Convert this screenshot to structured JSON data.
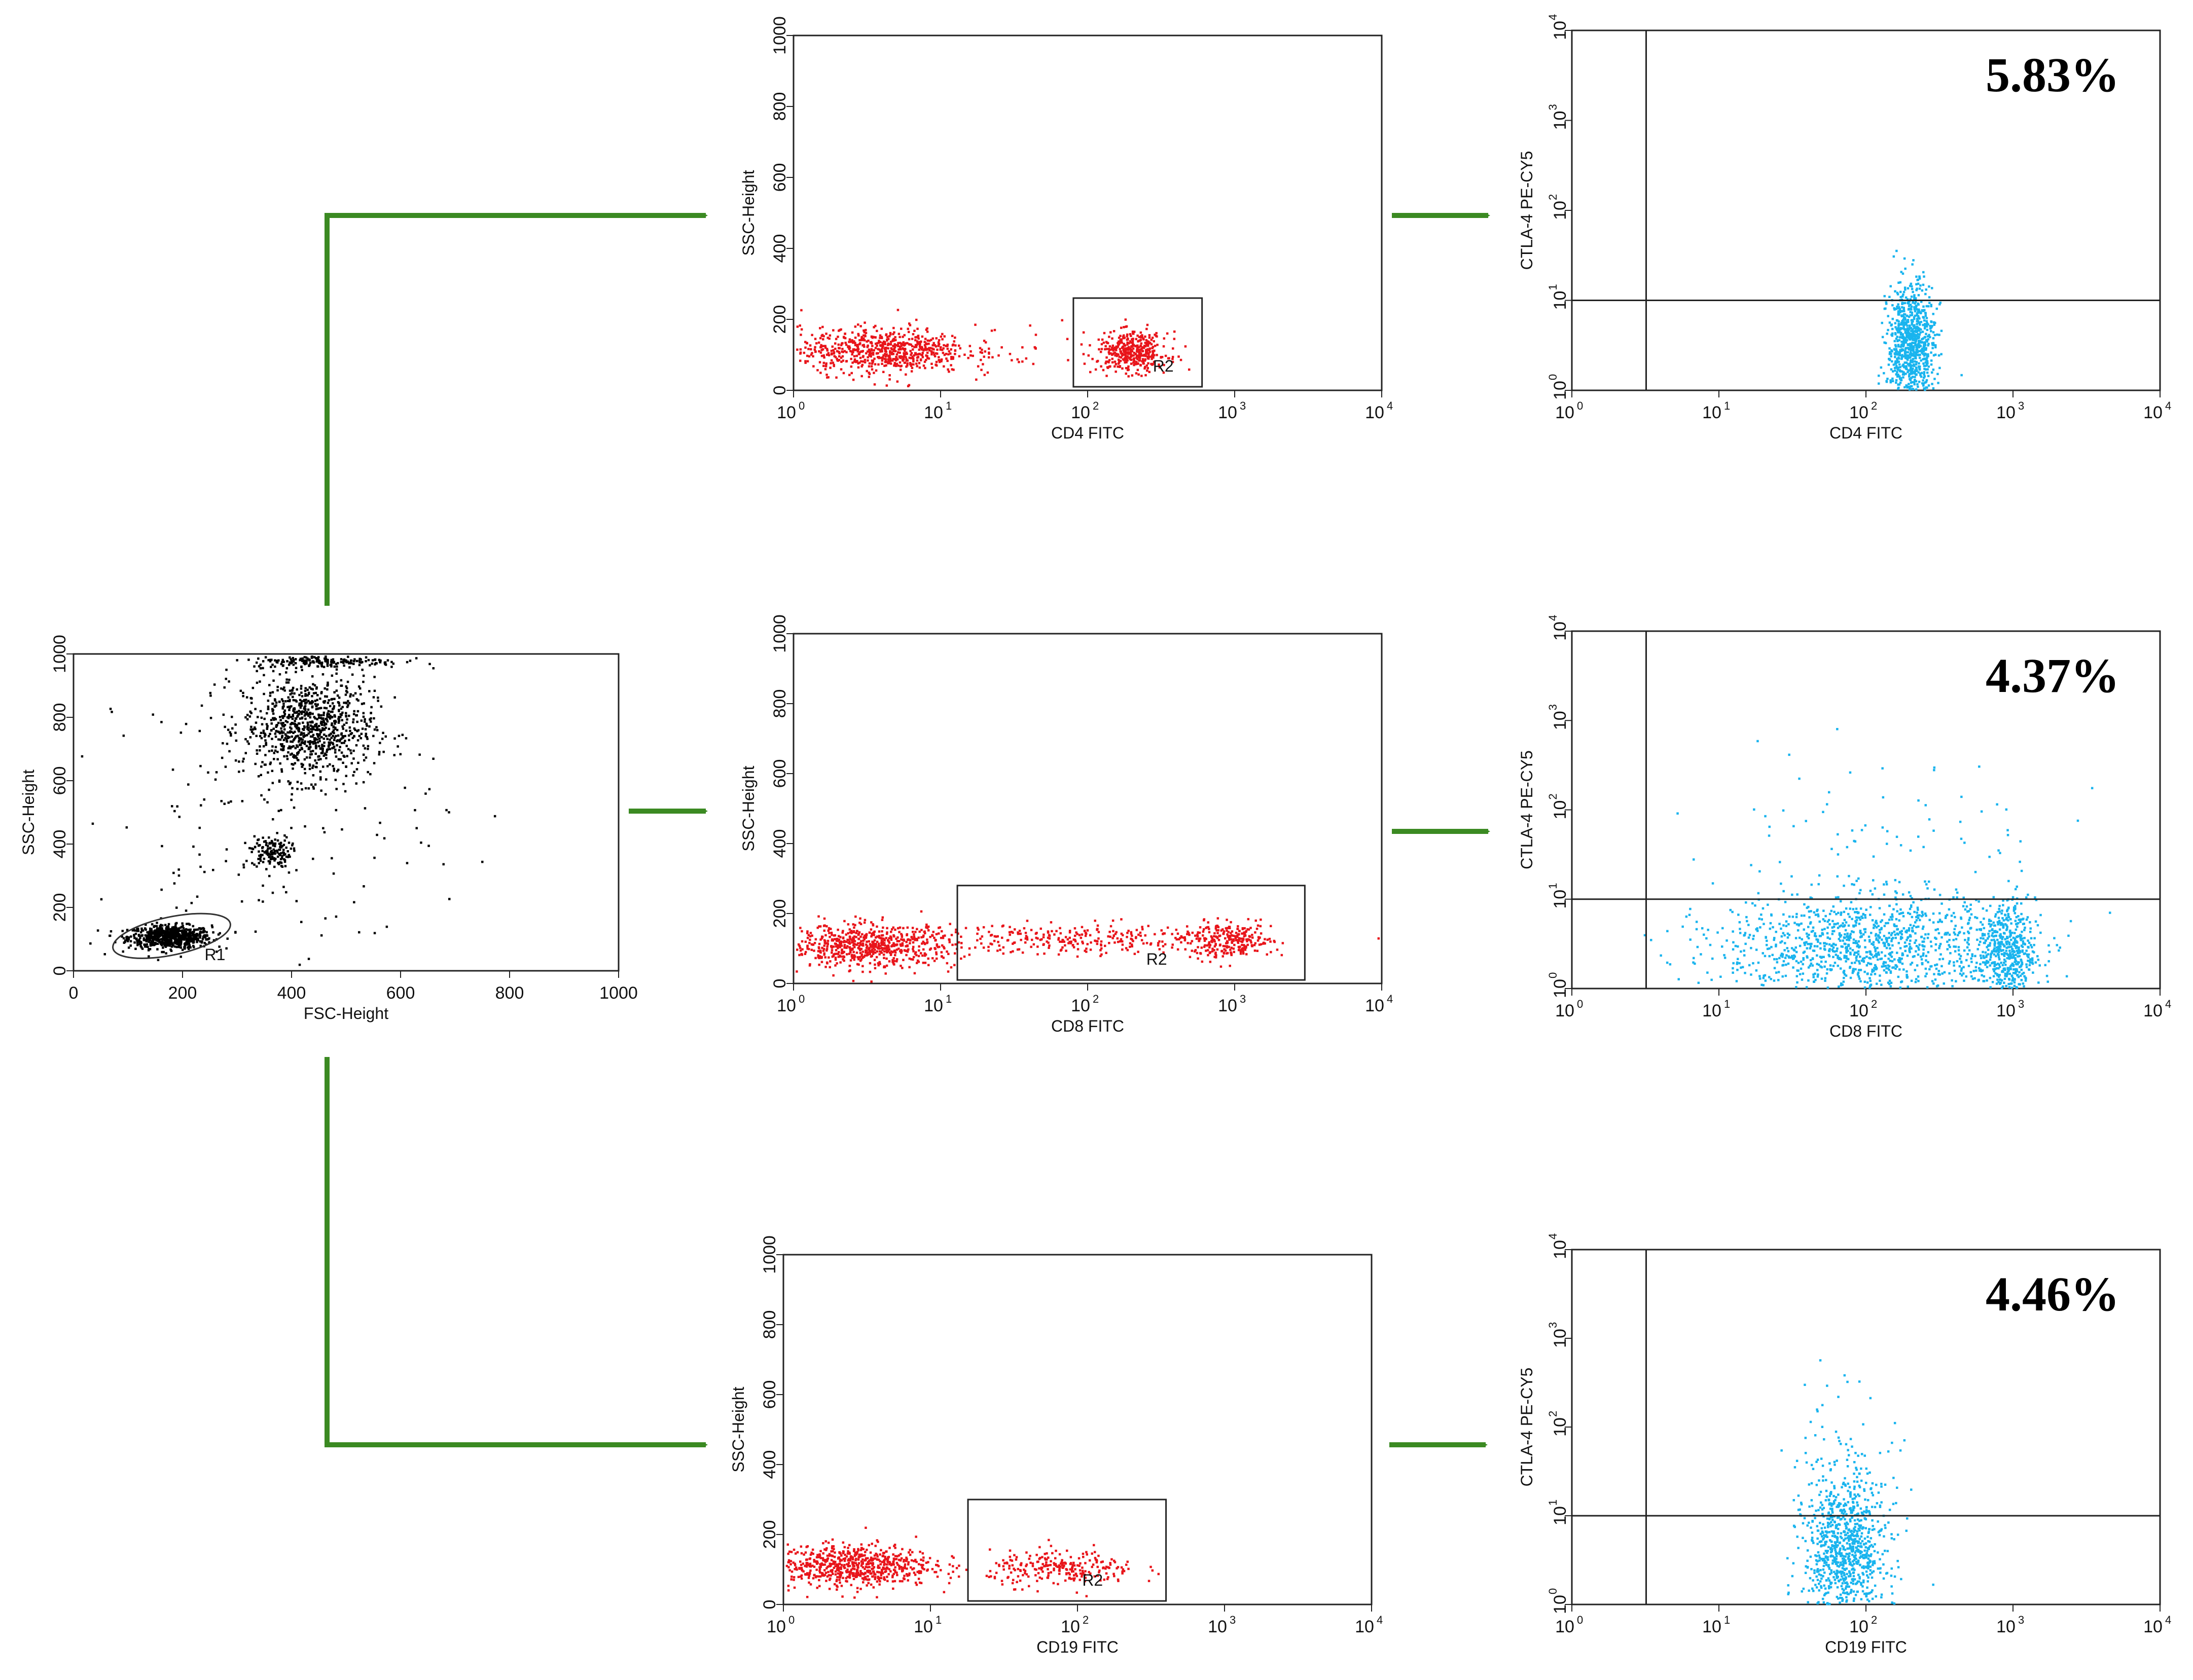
{
  "colors": {
    "arrow": "#3b8a22",
    "gated": "#e8141a",
    "ungated": "#000000",
    "quadrant": "#19b4ee"
  },
  "chart_data": [
    {
      "id": "fsc_ssc",
      "type": "scatter",
      "xlabel": "FSC-Height",
      "ylabel": "SSC-Height",
      "xlim": [
        0,
        1000
      ],
      "ylim": [
        0,
        1000
      ],
      "xticks": [
        "0",
        "200",
        "400",
        "600",
        "800",
        "1000"
      ],
      "yticks": [
        "0",
        "200",
        "400",
        "600",
        "800",
        "1000"
      ],
      "gate": {
        "label": "R1",
        "shape": "ellipse",
        "center": [
          180,
          110
        ],
        "radii": [
          110,
          60
        ]
      },
      "populations": [
        {
          "center": [
            175,
            110
          ],
          "spread": [
            38,
            18
          ],
          "n": 700
        },
        {
          "center": [
            360,
            380
          ],
          "spread": [
            18,
            25
          ],
          "n": 140
        },
        {
          "center": [
            430,
            770
          ],
          "spread": [
            60,
            80
          ],
          "n": 900
        },
        {
          "center": [
            460,
            980
          ],
          "spread": [
            70,
            10
          ],
          "n": 200
        },
        {
          "center": [
            350,
            500
          ],
          "spread": [
            160,
            250
          ],
          "n": 160
        }
      ]
    },
    {
      "id": "cd4_ssc",
      "type": "scatter",
      "xlabel": "CD4 FITC",
      "ylabel": "SSC-Height",
      "xscale": "log",
      "xlim": [
        1,
        10000
      ],
      "ylim": [
        0,
        1000
      ],
      "yticks": [
        "0",
        "200",
        "400",
        "600",
        "800",
        "1000"
      ],
      "gate": {
        "label": "R2",
        "shape": "rect",
        "x": [
          80,
          600
        ],
        "y": [
          10,
          260
        ]
      },
      "populations": [
        {
          "log10x": 0.6,
          "y": 115,
          "spread": [
            0.28,
            32
          ],
          "n": 700
        },
        {
          "log10x": 2.3,
          "y": 110,
          "spread": [
            0.12,
            28
          ],
          "n": 400
        },
        {
          "log10x": 1.5,
          "y": 120,
          "spread": [
            0.4,
            40
          ],
          "n": 40
        }
      ]
    },
    {
      "id": "cd4_ctla4",
      "type": "scatter",
      "xlabel": "CD4 FITC",
      "ylabel": "CTLA-4 PE-CY5",
      "xscale": "log",
      "yscale": "log",
      "xlim": [
        1,
        10000
      ],
      "ylim": [
        1,
        10000
      ],
      "quadrant": {
        "x": 3.2,
        "y": 10
      },
      "percent": "5.83%",
      "populations": [
        {
          "log10x": 2.3,
          "log10y": 0.5,
          "spread": [
            0.08,
            0.35
          ],
          "n": 900
        }
      ]
    },
    {
      "id": "cd8_ssc",
      "type": "scatter",
      "xlabel": "CD8 FITC",
      "ylabel": "SSC-Height",
      "xscale": "log",
      "xlim": [
        1,
        10000
      ],
      "ylim": [
        0,
        1000
      ],
      "yticks": [
        "0",
        "200",
        "400",
        "600",
        "800",
        "1000"
      ],
      "gate": {
        "label": "R2",
        "shape": "rect",
        "x": [
          13,
          3000
        ],
        "y": [
          10,
          280
        ]
      },
      "populations": [
        {
          "log10x": 0.5,
          "y": 110,
          "spread": [
            0.3,
            30
          ],
          "n": 700
        },
        {
          "log10x": 2.0,
          "y": 130,
          "spread": [
            0.55,
            22
          ],
          "n": 300
        },
        {
          "log10x": 2.95,
          "y": 125,
          "spread": [
            0.15,
            25
          ],
          "n": 250
        }
      ]
    },
    {
      "id": "cd8_ctla4",
      "type": "scatter",
      "xlabel": "CD8 FITC",
      "ylabel": "CTLA-4 PE-CY5",
      "xscale": "log",
      "yscale": "log",
      "xlim": [
        1,
        10000
      ],
      "ylim": [
        1,
        10000
      ],
      "quadrant": {
        "x": 3.2,
        "y": 10
      },
      "percent": "4.37%",
      "populations": [
        {
          "log10x": 2.0,
          "log10y": 0.5,
          "spread": [
            0.5,
            0.3
          ],
          "n": 1200
        },
        {
          "log10x": 2.95,
          "log10y": 0.4,
          "spread": [
            0.1,
            0.3
          ],
          "n": 500
        },
        {
          "log10x": 2.1,
          "log10y": 1.8,
          "spread": [
            0.6,
            0.45
          ],
          "n": 70
        }
      ]
    },
    {
      "id": "cd19_ssc",
      "type": "scatter",
      "xlabel": "CD19 FITC",
      "ylabel": "SSC-Height",
      "xscale": "log",
      "xlim": [
        1,
        10000
      ],
      "ylim": [
        0,
        1000
      ],
      "yticks": [
        "0",
        "200",
        "400",
        "600",
        "800",
        "1000"
      ],
      "gate": {
        "label": "R2",
        "shape": "rect",
        "x": [
          18,
          400
        ],
        "y": [
          10,
          300
        ]
      },
      "populations": [
        {
          "log10x": 0.45,
          "y": 115,
          "spread": [
            0.28,
            30
          ],
          "n": 700
        },
        {
          "log10x": 1.9,
          "y": 105,
          "spread": [
            0.25,
            25
          ],
          "n": 250
        }
      ]
    },
    {
      "id": "cd19_ctla4",
      "type": "scatter",
      "xlabel": "CD19 FITC",
      "ylabel": "CTLA-4 PE-CY5",
      "xscale": "log",
      "yscale": "log",
      "xlim": [
        1,
        10000
      ],
      "ylim": [
        1,
        10000
      ],
      "quadrant": {
        "x": 3.2,
        "y": 10
      },
      "percent": "4.46%",
      "populations": [
        {
          "log10x": 1.85,
          "log10y": 0.6,
          "spread": [
            0.14,
            0.4
          ],
          "n": 900
        },
        {
          "log10x": 1.85,
          "log10y": 1.7,
          "spread": [
            0.2,
            0.45
          ],
          "n": 80
        }
      ]
    }
  ]
}
